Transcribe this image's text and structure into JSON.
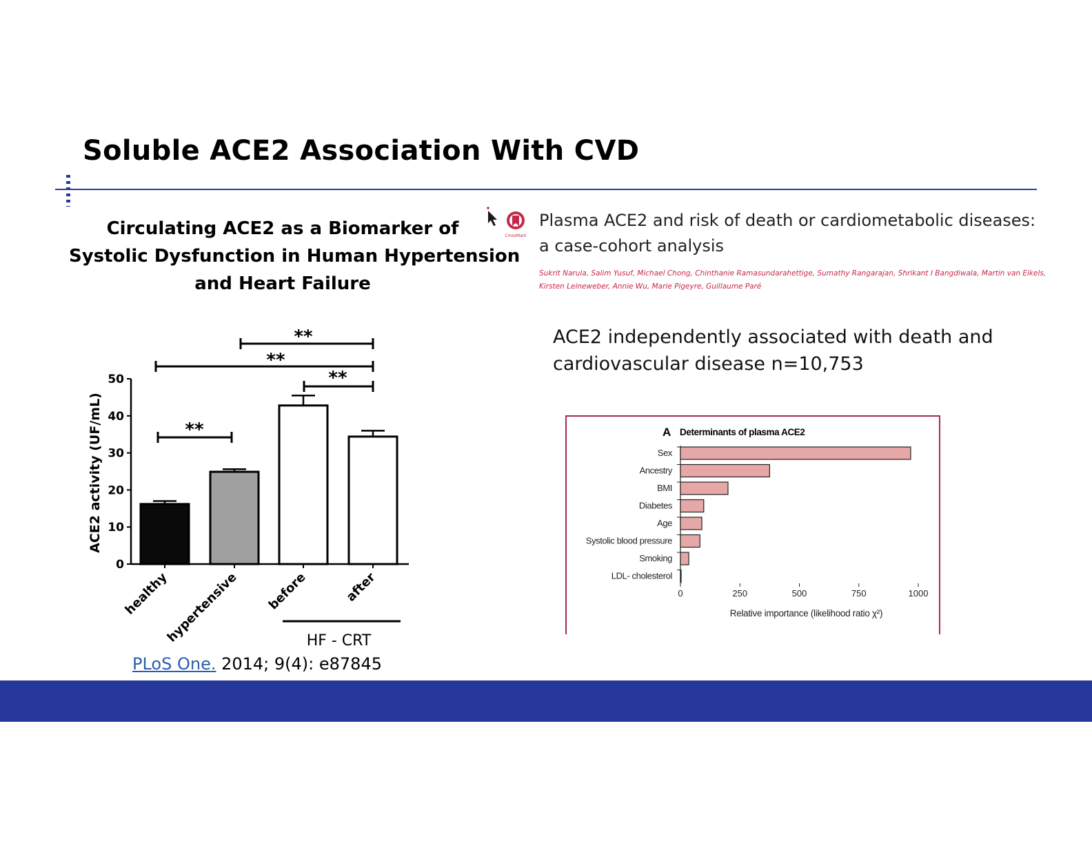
{
  "slide": {
    "title": "Soluble ACE2 Association With CVD",
    "accent_color": "#26399a"
  },
  "left_study": {
    "heading_lines": [
      "Circulating ACE2 as a Biomarker of",
      "Systolic Dysfunction in Human Hypertension",
      "and Heart Failure"
    ],
    "citation_link": "PLoS One.",
    "citation_rest": " 2014; 9(4): e87845"
  },
  "right_study": {
    "crossmark_label": "CrossMark",
    "title_lines": [
      "Plasma ACE2 and risk of death or cardiometabolic diseases:",
      "a case-cohort analysis"
    ],
    "author_lines": [
      "Sukrit Narula, Salim Yusuf, Michael Chong, Chinthanie Ramasundarahettige, Sumathy Rangarajan, Shrikant I Bangdiwala, Martin van Eikels,",
      "Kirsten Leineweber, Annie Wu, Marie Pigeyre, Guillaume Paré"
    ],
    "finding_lines": [
      "ACE2 independently associated with death and",
      "cardiovascular disease n=10,753"
    ]
  },
  "chart_data": [
    {
      "type": "bar",
      "categories": [
        "healthy",
        "hypertensive",
        "before",
        "after"
      ],
      "values": [
        16.2,
        24.9,
        42.8,
        34.4
      ],
      "errors": [
        0.8,
        0.7,
        2.7,
        1.6
      ],
      "bar_colors": [
        "#0a0a0a",
        "#a0a0a0",
        "#ffffff",
        "#ffffff"
      ],
      "ylabel": "ACE2 activity (UF/mL)",
      "ylim": [
        0,
        50
      ],
      "yticks": [
        0,
        10,
        20,
        30,
        40,
        50
      ],
      "group_label": "HF - CRT",
      "group_categories": [
        "before",
        "after"
      ],
      "significance": [
        {
          "from": "healthy",
          "to": "hypertensive",
          "label": "**"
        },
        {
          "from": "healthy",
          "to": "after",
          "label": "**"
        },
        {
          "from": "hypertensive",
          "to": "after",
          "label": "**"
        },
        {
          "from": "before",
          "to": "after",
          "label": "**"
        }
      ]
    },
    {
      "type": "bar",
      "orientation": "horizontal",
      "panel_letter": "A",
      "title": "Determinants of plasma ACE2",
      "categories": [
        "Sex",
        "Ancestry",
        "BMI",
        "Diabetes",
        "Age",
        "Systolic blood pressure",
        "Smoking",
        "LDL- cholesterol"
      ],
      "values": [
        968,
        375,
        200,
        98,
        90,
        82,
        35,
        3
      ],
      "xlabel": "Relative importance (likelihood ratio χ²)",
      "xlim": [
        0,
        1000
      ],
      "xticks": [
        0,
        250,
        500,
        750,
        1000
      ],
      "bar_color": "#e6a8a6",
      "frame_color": "#a52a4a"
    }
  ]
}
